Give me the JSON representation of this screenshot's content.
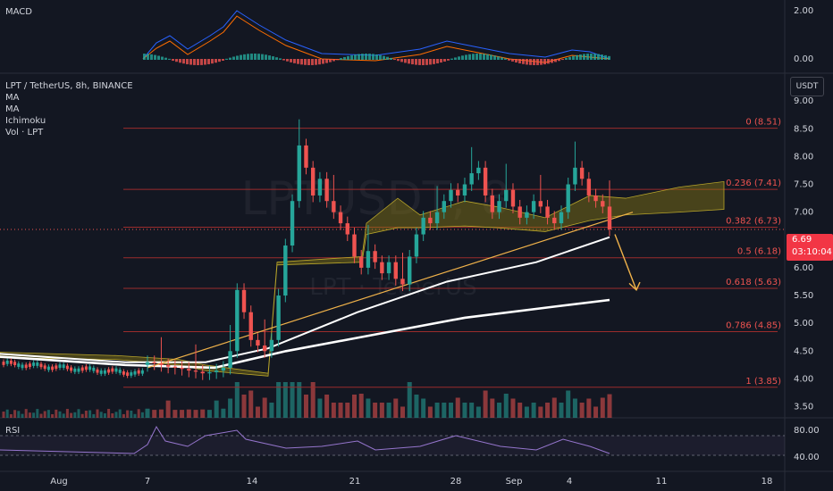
{
  "header": {
    "symbol_line": "LPT / TetherUS, 8h, BINANCE",
    "indicators": [
      "MA",
      "MA",
      "Ichimoku",
      "Vol · LPT"
    ],
    "currency_button": "USDT"
  },
  "panes": {
    "macd_label": "MACD",
    "rsi_label": "RSI"
  },
  "watermark": {
    "main": "LPTUSDT, 8",
    "sub": "LPT · TetherUS"
  },
  "price_tag": {
    "price": "6.69",
    "countdown": "03:10:04"
  },
  "colors": {
    "bg": "#131722",
    "up": "#26a69a",
    "down": "#ef5350",
    "fib": "#9b2c2c",
    "ma_white": "#ffffff",
    "trend": "#f0b24a",
    "cloud": "#8a7a14",
    "rsi": "#9575cd",
    "macd": "#2962ff",
    "signal": "#ff6d00"
  },
  "chart_data": [
    {
      "type": "candlestick",
      "title": "LPT / TetherUS, 8h, BINANCE",
      "ylim": [
        3.3,
        9.5
      ],
      "y_ticks": [
        "9.00",
        "8.50",
        "8.00",
        "7.50",
        "7.00",
        "6.50",
        "6.00",
        "5.50",
        "5.00",
        "4.50",
        "4.00",
        "3.50"
      ],
      "x_ticks": [
        "Aug",
        "7",
        "14",
        "21",
        "28",
        "Sep",
        "4",
        "11",
        "18"
      ],
      "fib_levels": [
        {
          "label": "0 (8.51)",
          "value": 8.51
        },
        {
          "label": "0.236 (7.41)",
          "value": 7.41
        },
        {
          "label": "0.382 (6.73)",
          "value": 6.73
        },
        {
          "label": "0.5 (6.18)",
          "value": 6.18
        },
        {
          "label": "0.618 (5.63)",
          "value": 5.63
        },
        {
          "label": "0.786 (4.85)",
          "value": 4.85
        },
        {
          "label": "1 (3.85)",
          "value": 3.85
        }
      ],
      "closes": [
        4.3,
        4.28,
        4.25,
        4.22,
        4.2,
        4.18,
        4.15,
        4.13,
        4.1,
        4.12,
        4.15,
        4.2,
        4.5,
        5.6,
        5.2,
        4.7,
        4.6,
        4.5,
        4.7,
        5.5,
        6.4,
        7.2,
        8.2,
        7.8,
        7.3,
        7.6,
        7.2,
        7.0,
        6.8,
        6.6,
        6.2,
        6.0,
        6.3,
        6.1,
        5.9,
        6.1,
        5.8,
        5.7,
        6.2,
        6.6,
        6.9,
        6.8,
        7.0,
        7.2,
        7.4,
        7.3,
        7.5,
        7.7,
        7.8,
        7.3,
        7.0,
        7.2,
        7.4,
        7.1,
        6.9,
        7.0,
        7.2,
        7.1,
        6.9,
        6.8,
        7.0,
        7.5,
        7.8,
        7.6,
        7.3,
        7.2,
        7.1,
        6.69
      ],
      "current_price": 6.69
    },
    {
      "type": "line",
      "name": "MACD",
      "y_ticks": [
        "2.00",
        "0.00"
      ]
    },
    {
      "type": "line",
      "name": "RSI",
      "y_ticks": [
        "80.00",
        "40.00"
      ]
    }
  ]
}
